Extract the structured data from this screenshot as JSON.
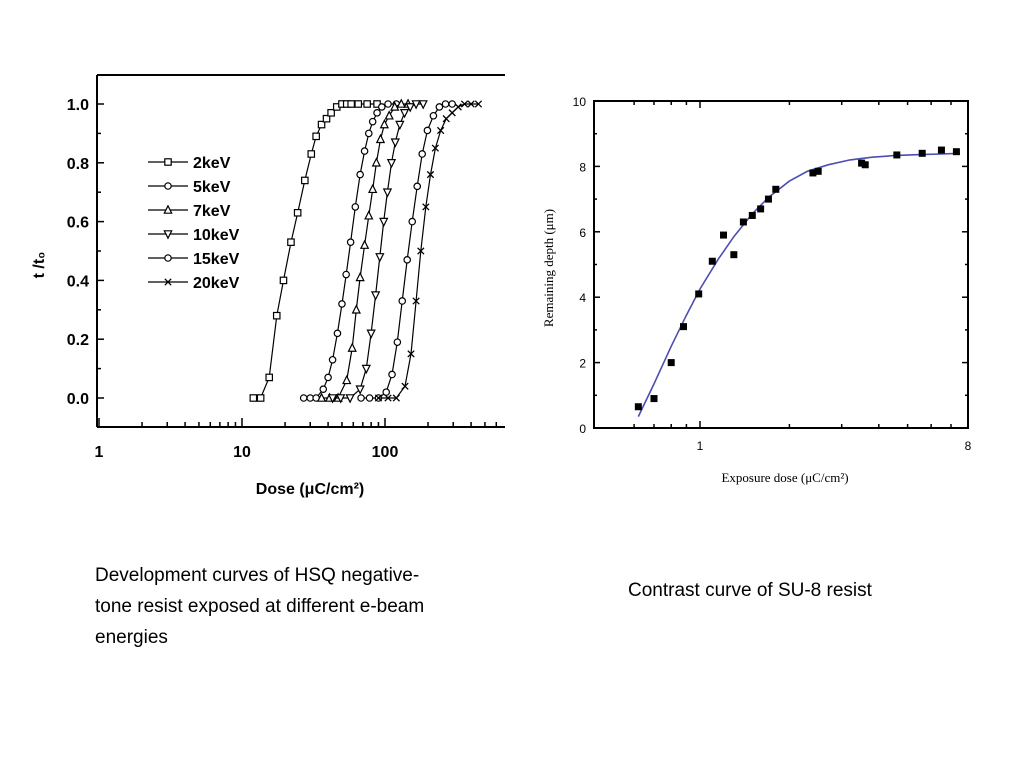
{
  "captions": {
    "left": "Development curves of HSQ negative-tone resist exposed at different e-beam energies",
    "right": "Contrast curve of SU-8 resist"
  },
  "chart_data": [
    {
      "type": "line",
      "xlabel": "Dose (μC/cm²)",
      "ylabel": "t /t₀",
      "xscale": "log",
      "xlim": [
        1,
        700
      ],
      "ylim": [
        -0.1,
        1.1
      ],
      "xticks": [
        1,
        10,
        100
      ],
      "yticks": [
        0.0,
        0.2,
        0.4,
        0.6,
        0.8,
        1.0
      ],
      "ytick_labels": [
        "0.0",
        "0.2",
        "0.4",
        "0.6",
        "0.8",
        "1.0"
      ],
      "legend_position": "upper-left",
      "series": [
        {
          "name": "2keV",
          "marker": "square",
          "x": [
            12,
            13.5,
            15.5,
            17.5,
            19.5,
            22,
            24.5,
            27.5,
            30.5,
            33,
            36,
            39,
            42,
            46,
            50,
            54,
            58,
            65,
            75,
            88
          ],
          "y": [
            0,
            0,
            0.07,
            0.28,
            0.4,
            0.53,
            0.63,
            0.74,
            0.83,
            0.89,
            0.93,
            0.95,
            0.97,
            0.99,
            1.0,
            1.0,
            1.0,
            1.0,
            1.0,
            1.0
          ]
        },
        {
          "name": "5keV",
          "marker": "circle",
          "x": [
            27,
            30,
            33,
            37,
            40,
            43,
            46.5,
            50,
            53.5,
            57.5,
            62,
            67,
            72,
            77,
            82,
            88,
            95,
            105,
            120
          ],
          "y": [
            0,
            0,
            0,
            0.03,
            0.07,
            0.13,
            0.22,
            0.32,
            0.42,
            0.53,
            0.65,
            0.76,
            0.84,
            0.9,
            0.94,
            0.97,
            0.99,
            1.0,
            1.0
          ]
        },
        {
          "name": "7keV",
          "marker": "triangle-up",
          "x": [
            36,
            41,
            47,
            54,
            59,
            63,
            67,
            72,
            77,
            82,
            87,
            93,
            99,
            107,
            117,
            130,
            145
          ],
          "y": [
            0,
            0,
            0,
            0.06,
            0.17,
            0.3,
            0.41,
            0.52,
            0.62,
            0.71,
            0.8,
            0.88,
            0.93,
            0.96,
            0.99,
            1.0,
            1.0
          ]
        },
        {
          "name": "10keV",
          "marker": "triangle-down",
          "x": [
            43,
            49,
            57,
            67,
            74,
            80,
            86,
            92,
            98,
            104,
            111,
            118,
            127,
            137,
            150,
            165,
            185
          ],
          "y": [
            0,
            0,
            0,
            0.03,
            0.1,
            0.22,
            0.35,
            0.48,
            0.6,
            0.7,
            0.8,
            0.87,
            0.93,
            0.97,
            0.99,
            1.0,
            1.0
          ]
        },
        {
          "name": "15keV",
          "marker": "circle",
          "x": [
            68,
            78,
            90,
            102,
            112,
            122,
            132,
            143,
            155,
            168,
            182,
            198,
            218,
            240,
            265,
            295
          ],
          "y": [
            0,
            0,
            0,
            0.02,
            0.08,
            0.19,
            0.33,
            0.47,
            0.6,
            0.72,
            0.83,
            0.91,
            0.96,
            0.99,
            1.0,
            1.0
          ]
        },
        {
          "name": "20keV",
          "marker": "x",
          "x": [
            90,
            105,
            120,
            138,
            152,
            165,
            178,
            193,
            208,
            225,
            245,
            268,
            295,
            325,
            360,
            400,
            450
          ],
          "y": [
            0,
            0,
            0,
            0.04,
            0.15,
            0.33,
            0.5,
            0.65,
            0.76,
            0.85,
            0.91,
            0.95,
            0.97,
            0.99,
            1.0,
            1.0,
            1.0
          ]
        }
      ]
    },
    {
      "type": "scatter",
      "xlabel": "Exposure dose (μC/cm²)",
      "ylabel": "Remaining depth (μm)",
      "xscale": "log",
      "xlim": [
        0.5,
        9
      ],
      "ylim": [
        0,
        10
      ],
      "xticks": [
        1,
        8
      ],
      "xtick_labels": [
        "1",
        "8"
      ],
      "yticks": [
        0,
        2,
        4,
        6,
        8,
        10
      ],
      "ytick_labels": [
        "0",
        "2",
        "4",
        "6",
        "8",
        "10"
      ],
      "series": [
        {
          "marker": "filled-square",
          "x": [
            0.62,
            0.7,
            0.8,
            0.88,
            0.99,
            1.1,
            1.2,
            1.3,
            1.4,
            1.5,
            1.6,
            1.7,
            1.8,
            2.4,
            2.5,
            3.5,
            3.6,
            4.6,
            5.6,
            6.5,
            7.3
          ],
          "y": [
            0.65,
            0.9,
            2.0,
            3.1,
            4.1,
            5.1,
            5.9,
            5.3,
            6.3,
            6.5,
            6.7,
            7.0,
            7.3,
            7.8,
            7.85,
            8.1,
            8.05,
            8.35,
            8.4,
            8.5,
            8.45
          ]
        },
        {
          "fit": true,
          "color": "#4b4fb0",
          "x": [
            0.62,
            0.7,
            0.8,
            0.9,
            1.0,
            1.15,
            1.3,
            1.5,
            1.7,
            2.0,
            2.3,
            2.7,
            3.2,
            3.8,
            4.5,
            5.5,
            6.5,
            7.5
          ],
          "y": [
            0.35,
            1.35,
            2.5,
            3.45,
            4.25,
            5.15,
            5.85,
            6.55,
            7.05,
            7.55,
            7.85,
            8.05,
            8.2,
            8.28,
            8.33,
            8.36,
            8.38,
            8.4
          ]
        }
      ]
    }
  ]
}
